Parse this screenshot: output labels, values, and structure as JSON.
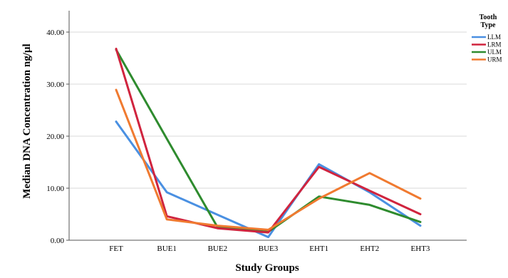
{
  "chart_data": {
    "type": "line",
    "xlabel": "Study Groups",
    "ylabel": "Median DNA Concentration ng/µl",
    "categories": [
      "FET",
      "BUE1",
      "BUE2",
      "BUE3",
      "EHT1",
      "EHT2",
      "EHT3"
    ],
    "ylim": [
      0,
      40
    ],
    "yticks": [
      "0.00",
      "10.00",
      "20.00",
      "30.00",
      "40.00"
    ],
    "grid": true,
    "legend_title": [
      "Tooth",
      "Type"
    ],
    "legend_position": "top-right",
    "series": [
      {
        "name": "LLM",
        "color": "#4a90e2",
        "values": [
          22.8,
          9.2,
          4.9,
          0.6,
          14.6,
          9.2,
          2.8
        ]
      },
      {
        "name": "LRM",
        "color": "#d0243e",
        "values": [
          36.8,
          4.6,
          2.3,
          1.5,
          14.1,
          9.5,
          5.0
        ]
      },
      {
        "name": "ULM",
        "color": "#2e8b2e",
        "values": [
          36.6,
          19.5,
          2.5,
          1.6,
          8.4,
          6.8,
          3.5
        ]
      },
      {
        "name": "URM",
        "color": "#f07a30",
        "values": [
          28.9,
          4.0,
          2.8,
          2.0,
          8.0,
          12.9,
          8.0
        ]
      }
    ]
  }
}
